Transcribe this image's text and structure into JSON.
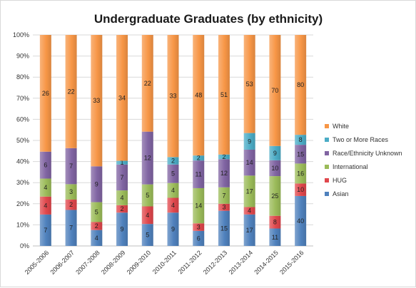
{
  "chart_data": {
    "type": "bar",
    "stacked": true,
    "normalized": true,
    "title": "Undergraduate Graduates (by ethnicity)",
    "xlabel": "",
    "ylabel": "",
    "ylim": [
      0,
      100
    ],
    "yticks": [
      "0%",
      "10%",
      "20%",
      "30%",
      "40%",
      "50%",
      "60%",
      "70%",
      "80%",
      "90%",
      "100%"
    ],
    "grid": true,
    "legend_position": "right",
    "categories": [
      "2005-2006",
      "2006-2007",
      "2007-2008",
      "2008-2009",
      "2009-2010",
      "2010-2011",
      "2011-2012",
      "2012-2013",
      "2013-2014",
      "2014-2015",
      "2015-2016"
    ],
    "series": [
      {
        "name": "Asian",
        "color": "#4f81bd",
        "values": [
          7,
          7,
          4,
          9,
          5,
          9,
          6,
          15,
          17,
          11,
          40
        ]
      },
      {
        "name": "HUG",
        "color": "#e0474c",
        "values": [
          4,
          2,
          2,
          2,
          4,
          4,
          3,
          3,
          4,
          8,
          10
        ]
      },
      {
        "name": "International",
        "color": "#9bbb59",
        "values": [
          4,
          3,
          5,
          4,
          5,
          4,
          14,
          7,
          17,
          25,
          16
        ]
      },
      {
        "name": "Race/Ethnicity Unknown",
        "color": "#8064a2",
        "values": [
          6,
          7,
          9,
          7,
          12,
          5,
          11,
          12,
          14,
          10,
          15
        ]
      },
      {
        "name": "Two or More Races",
        "color": "#4bacc6",
        "values": [
          0,
          0,
          0,
          1,
          0,
          2,
          2,
          2,
          9,
          9,
          8
        ]
      },
      {
        "name": "White",
        "color": "#f79646",
        "values": [
          26,
          22,
          33,
          34,
          22,
          33,
          48,
          51,
          53,
          70,
          80
        ]
      }
    ]
  }
}
